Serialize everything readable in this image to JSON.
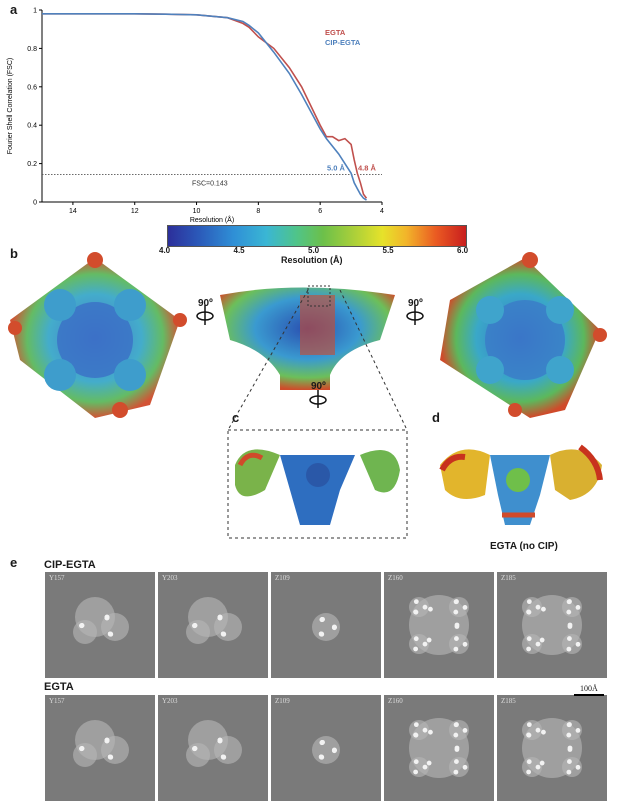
{
  "panels": {
    "a": "a",
    "b": "b",
    "c": "c",
    "d": "d",
    "e": "e"
  },
  "chart_data": {
    "type": "line",
    "ylabel": "Fourier Shell Correlation (FSC)",
    "xlabel": "Resolution (Å)",
    "x_ticks": [
      "14",
      "12",
      "10",
      "8",
      "6",
      "4"
    ],
    "y_ticks": [
      "0",
      "0.2",
      "0.4",
      "0.6",
      "0.8",
      "1"
    ],
    "xlim": [
      15,
      4
    ],
    "ylim": [
      0,
      1
    ],
    "threshold": {
      "value": 0.143,
      "label": "FSC=0.143"
    },
    "series": [
      {
        "name": "EGTA",
        "color": "#c0504d",
        "resolution_label": "4.8 Å",
        "x": [
          15,
          14,
          13,
          12,
          11,
          10,
          9,
          8.5,
          8.3,
          8,
          7.5,
          7,
          6.6,
          6.3,
          6,
          5.8,
          5.6,
          5.4,
          5.2,
          5.0,
          4.9,
          4.8,
          4.7,
          4.6,
          4.5
        ],
        "y": [
          0.98,
          0.98,
          0.98,
          0.98,
          0.978,
          0.975,
          0.96,
          0.93,
          0.91,
          0.86,
          0.8,
          0.7,
          0.6,
          0.5,
          0.4,
          0.34,
          0.34,
          0.32,
          0.33,
          0.3,
          0.22,
          0.15,
          0.1,
          0.04,
          0.02
        ]
      },
      {
        "name": "CIP-EGTA",
        "color": "#4f81bd",
        "resolution_label": "5.0 Å",
        "x": [
          15,
          14,
          13,
          12,
          11,
          10,
          9,
          8.5,
          8.3,
          8,
          7.5,
          7,
          6.6,
          6.3,
          6,
          5.8,
          5.6,
          5.4,
          5.2,
          5.0,
          4.9,
          4.8,
          4.7,
          4.6,
          4.5
        ],
        "y": [
          0.98,
          0.98,
          0.98,
          0.98,
          0.978,
          0.975,
          0.96,
          0.94,
          0.92,
          0.88,
          0.78,
          0.67,
          0.56,
          0.47,
          0.38,
          0.33,
          0.29,
          0.25,
          0.2,
          0.15,
          0.1,
          0.07,
          0.04,
          0.02,
          0.01
        ]
      }
    ]
  },
  "colorbar": {
    "ticks": [
      "4.0",
      "4.5",
      "5.0",
      "5.5",
      "6.0"
    ],
    "label": "Resolution (Å)"
  },
  "rotations": {
    "label": "90º"
  },
  "panel_d_caption": "EGTA (no CIP)",
  "panel_e": {
    "rows": [
      {
        "title": "CIP-EGTA",
        "slices": [
          "Y157",
          "Y203",
          "Z109",
          "Z160",
          "Z185"
        ]
      },
      {
        "title": "EGTA",
        "slices": [
          "Y157",
          "Y203",
          "Z109",
          "Z160",
          "Z185"
        ]
      }
    ],
    "scale_bar": "100Å"
  }
}
